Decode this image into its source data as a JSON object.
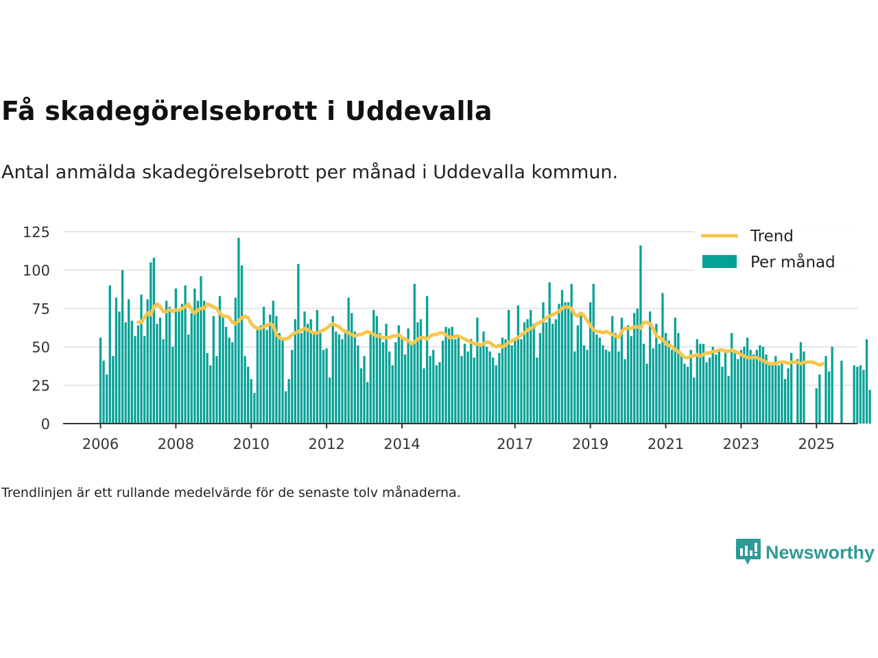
{
  "title": "Få skadegörelsebrott i Uddevalla",
  "subtitle": "Antal anmälda skadegörelsebrott per månad i Uddevalla kommun.",
  "footnote": "Trendlinjen är ett rullande medelvärde för de senaste tolv månaderna.",
  "brand": {
    "name": "Newsworthy",
    "color": "#2e9a96"
  },
  "colors": {
    "bar": "#06a196",
    "trend": "#f8c64e",
    "grid": "#dddddd",
    "axis": "#333333"
  },
  "chart_data": {
    "type": "bar",
    "x_start": "2006-01",
    "ylim": [
      0,
      125
    ],
    "yticks": [
      0,
      25,
      50,
      75,
      100,
      125
    ],
    "xtick_labels": [
      "2006",
      "2008",
      "2010",
      "2012",
      "2014",
      "2017",
      "2019",
      "2021",
      "2023",
      "2025"
    ],
    "grid": true,
    "legend_position": "top-right",
    "series": [
      {
        "name": "Per månad",
        "type": "bar",
        "values": [
          56,
          41,
          32,
          90,
          44,
          82,
          73,
          100,
          66,
          81,
          67,
          57,
          64,
          84,
          57,
          81,
          105,
          108,
          65,
          69,
          55,
          80,
          76,
          50,
          88,
          74,
          78,
          90,
          58,
          72,
          88,
          80,
          96,
          80,
          46,
          38,
          70,
          44,
          83,
          69,
          63,
          56,
          53,
          82,
          121,
          103,
          44,
          37,
          29,
          20,
          62,
          64,
          76,
          61,
          71,
          80,
          70,
          59,
          55,
          21,
          29,
          48,
          68,
          104,
          59,
          73,
          65,
          68,
          60,
          74,
          59,
          48,
          49,
          30,
          70,
          60,
          58,
          55,
          60,
          82,
          72,
          60,
          51,
          36,
          44,
          27,
          60,
          74,
          70,
          59,
          53,
          65,
          47,
          38,
          53,
          64,
          57,
          45,
          62,
          53,
          91,
          66,
          68,
          36,
          83,
          44,
          48,
          38,
          40,
          54,
          63,
          62,
          63,
          55,
          56,
          44,
          52,
          47,
          55,
          43,
          69,
          51,
          60,
          50,
          47,
          43,
          38,
          46,
          56,
          55,
          74,
          51,
          56,
          77,
          55,
          66,
          68,
          74,
          65,
          43,
          59,
          79,
          66,
          92,
          65,
          68,
          78,
          87,
          79,
          79,
          91,
          47,
          64,
          71,
          51,
          48,
          79,
          91,
          58,
          56,
          51,
          48,
          47,
          70,
          59,
          47,
          69,
          42,
          64,
          57,
          72,
          75,
          116,
          52,
          39,
          73,
          49,
          65,
          52,
          85,
          59,
          54,
          48,
          69,
          59,
          45,
          39,
          37,
          48,
          30,
          55,
          52,
          52,
          40,
          43,
          50,
          45,
          48,
          37,
          48,
          31,
          59,
          46,
          42,
          48,
          50,
          56,
          48,
          45,
          48,
          51,
          50,
          45,
          40,
          38,
          44,
          38,
          39,
          29,
          36,
          46,
          0,
          42,
          53,
          47,
          0,
          0,
          0,
          23,
          32,
          0,
          44,
          34,
          50,
          0,
          0,
          41,
          0,
          0,
          0,
          38,
          37,
          38,
          35,
          55,
          22
        ]
      },
      {
        "name": "Trend",
        "type": "line",
        "start_month_index": 12,
        "values": [
          66,
          66,
          69,
          72,
          71,
          76,
          78,
          76,
          73,
          73,
          74,
          73,
          74,
          74,
          75,
          76,
          78,
          74,
          72,
          74,
          75,
          75,
          78,
          77,
          76,
          75,
          72,
          70,
          70,
          69,
          66,
          65,
          67,
          69,
          70,
          69,
          65,
          63,
          62,
          62,
          63,
          64,
          65,
          64,
          58,
          56,
          55,
          55,
          56,
          58,
          59,
          60,
          61,
          62,
          61,
          60,
          59,
          59,
          60,
          61,
          62,
          64,
          65,
          64,
          63,
          61,
          60,
          59,
          58,
          57,
          58,
          58,
          59,
          60,
          59,
          58,
          57,
          57,
          56,
          56,
          56,
          57,
          57,
          58,
          56,
          55,
          54,
          52,
          53,
          55,
          56,
          56,
          55,
          57,
          58,
          58,
          59,
          59,
          58,
          56,
          56,
          57,
          57,
          56,
          55,
          54,
          53,
          52,
          52,
          51,
          52,
          53,
          53,
          51,
          50,
          51,
          50,
          51,
          53,
          54,
          55,
          56,
          58,
          59,
          61,
          62,
          63,
          65,
          66,
          67,
          69,
          70,
          71,
          72,
          73,
          75,
          76,
          76,
          75,
          71,
          70,
          72,
          70,
          67,
          64,
          61,
          60,
          60,
          59,
          60,
          59,
          58,
          57,
          56,
          60,
          62,
          62,
          62,
          63,
          63,
          62,
          66,
          66,
          65,
          62,
          57,
          56,
          55,
          52,
          51,
          50,
          48,
          47,
          45,
          43,
          43,
          44,
          44,
          45,
          44,
          45,
          46,
          46,
          47,
          47,
          48,
          48,
          47,
          47,
          48,
          47,
          46,
          45,
          44,
          43,
          43,
          43,
          43,
          42,
          41,
          40,
          39,
          39,
          39,
          40,
          40,
          40,
          39,
          40,
          40,
          40,
          39,
          40,
          40,
          40,
          40,
          39,
          38,
          39
        ]
      }
    ]
  }
}
